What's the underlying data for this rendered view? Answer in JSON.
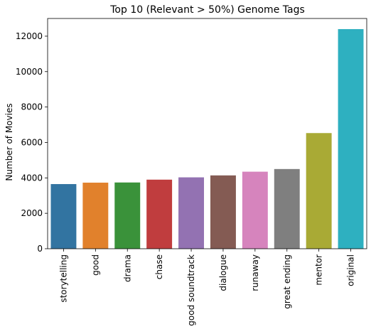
{
  "chart_data": {
    "type": "bar",
    "title": "Top 10 (Relevant > 50%) Genome Tags",
    "xlabel": "",
    "ylabel": "Number of Movies",
    "categories": [
      "storytelling",
      "good",
      "drama",
      "chase",
      "good soundtrack",
      "dialogue",
      "runaway",
      "great ending",
      "mentor",
      "original"
    ],
    "values": [
      3650,
      3730,
      3740,
      3900,
      4030,
      4140,
      4350,
      4500,
      6530,
      12400
    ],
    "colors": [
      "#3274a1",
      "#e1812c",
      "#3a923a",
      "#c03d3e",
      "#9372b2",
      "#845b53",
      "#d684bd",
      "#7f7f7f",
      "#a9aa35",
      "#2eb0c0"
    ],
    "ylim": [
      0,
      13000
    ],
    "yticks": [
      0,
      2000,
      4000,
      6000,
      8000,
      10000,
      12000
    ],
    "grid": false,
    "legend": false
  }
}
